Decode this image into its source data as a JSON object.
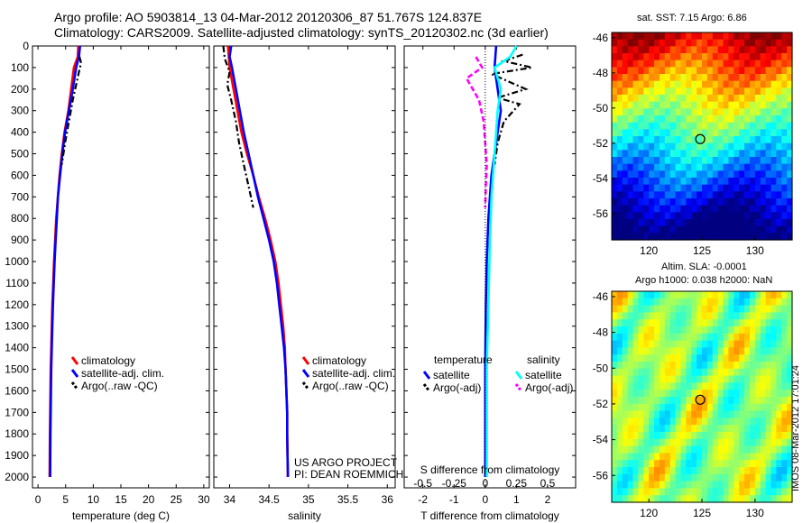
{
  "header": {
    "title_line1": "Argo profile: AO 5903814_13 04-Mar-2012 20120306_87 51.767S 124.837E",
    "title_line2": "Climatology: CARS2009. Satellite-adjusted climatology: synTS_20120302.nc (3d earlier)"
  },
  "side": {
    "sst_title": "sat. SST: 7.15 Argo: 6.86",
    "sla_title1": "Altim. SLA: -0.0001",
    "sla_title2": "Argo h1000: 0.038 h2000: NaN",
    "credit1": "US ARGO PROJECT",
    "credit2": "PI: DEAN ROEMMICH",
    "imos": "IMOS 08-Mar-2012 17:01:24"
  },
  "colors": {
    "climatology": "#ff0000",
    "satellite": "#0000ff",
    "argo": "#000000",
    "salinity_satellite": "#00ffff",
    "salinity_argo": "#ff00ff"
  },
  "chart_data": [
    {
      "type": "line",
      "xlabel": "temperature (deg C)",
      "xlim": [
        -1,
        31
      ],
      "xticks": [
        0,
        5,
        10,
        15,
        20,
        25,
        30
      ],
      "ylabel": "",
      "ylim": [
        0,
        2050
      ],
      "yreversed": true,
      "yticks": [
        0,
        100,
        200,
        300,
        400,
        500,
        600,
        700,
        800,
        900,
        1000,
        1100,
        1200,
        1300,
        1400,
        1500,
        1600,
        1700,
        1800,
        1900,
        2000
      ],
      "legend": [
        "climatology",
        "satellite-adj. clim.",
        "Argo(..raw -QC)"
      ],
      "series": [
        {
          "name": "climatology",
          "style": "solid",
          "color_key": "climatology",
          "x": [
            7.3,
            7.2,
            6.5,
            6.0,
            5.5,
            4.8,
            4.3,
            3.9,
            3.6,
            3.3,
            3.1,
            2.9,
            2.75,
            2.6,
            2.5,
            2.4,
            2.3,
            2.25,
            2.2,
            2.15,
            2.1
          ],
          "y": [
            0,
            50,
            100,
            200,
            300,
            400,
            500,
            600,
            700,
            800,
            900,
            1000,
            1100,
            1200,
            1300,
            1400,
            1500,
            1600,
            1700,
            1800,
            2000
          ]
        },
        {
          "name": "satellite-adj. clim.",
          "style": "solid",
          "color_key": "satellite",
          "x": [
            7.6,
            7.4,
            6.9,
            6.3,
            5.6,
            4.9,
            4.4,
            4.0,
            3.6,
            3.4,
            3.2,
            3.0,
            2.85,
            2.7,
            2.6,
            2.5,
            2.4,
            2.35,
            2.3,
            2.25,
            2.2
          ],
          "y": [
            0,
            50,
            100,
            200,
            300,
            400,
            500,
            600,
            700,
            800,
            900,
            1000,
            1100,
            1200,
            1300,
            1400,
            1500,
            1600,
            1700,
            1800,
            2000
          ]
        },
        {
          "name": "Argo(..raw -QC)",
          "style": "dashdot",
          "color_key": "argo",
          "x": [
            7.5,
            7.8,
            7.4,
            6.9,
            6.3,
            5.6,
            4.9,
            4.3
          ],
          "y": [
            50,
            80,
            120,
            180,
            250,
            350,
            450,
            550
          ]
        }
      ]
    },
    {
      "type": "line",
      "xlabel": "salinity",
      "xlim": [
        33.8,
        36.1
      ],
      "xticks": [
        34,
        34.5,
        35,
        35.5,
        36
      ],
      "ylim": [
        0,
        2050
      ],
      "yreversed": true,
      "legend": [
        "climatology",
        "satellite-adj. clim.",
        "Argo(..raw -QC)"
      ],
      "series": [
        {
          "name": "climatology",
          "style": "solid",
          "color_key": "climatology",
          "x": [
            33.98,
            33.99,
            34.0,
            34.05,
            34.1,
            34.15,
            34.22,
            34.3,
            34.37,
            34.45,
            34.52,
            34.58,
            34.62,
            34.65,
            34.68,
            34.7,
            34.71,
            34.72,
            34.73,
            34.73,
            34.74
          ],
          "y": [
            0,
            50,
            100,
            200,
            300,
            400,
            500,
            600,
            700,
            800,
            900,
            1000,
            1100,
            1200,
            1300,
            1400,
            1500,
            1600,
            1700,
            1800,
            2000
          ]
        },
        {
          "name": "satellite-adj. clim.",
          "style": "solid",
          "color_key": "satellite",
          "x": [
            34.02,
            34.0,
            34.03,
            34.08,
            34.13,
            34.18,
            34.24,
            34.3,
            34.36,
            34.43,
            34.5,
            34.56,
            34.6,
            34.63,
            34.66,
            34.69,
            34.71,
            34.72,
            34.73,
            34.73,
            34.74
          ],
          "y": [
            0,
            50,
            100,
            200,
            300,
            400,
            500,
            600,
            700,
            800,
            900,
            1000,
            1100,
            1200,
            1300,
            1400,
            1500,
            1600,
            1700,
            1800,
            2000
          ]
        },
        {
          "name": "Argo(..raw -QC)",
          "style": "dashdot",
          "color_key": "argo",
          "x": [
            33.92,
            33.94,
            34.0,
            33.97,
            34.02,
            34.08,
            34.12,
            34.18,
            34.24,
            34.3
          ],
          "y": [
            0,
            60,
            120,
            180,
            250,
            350,
            450,
            550,
            650,
            750
          ]
        }
      ]
    },
    {
      "type": "line",
      "xlabel": "T difference from climatology",
      "xlabel_top": "S difference from climatology",
      "xlim": [
        -2.6,
        2.9
      ],
      "xticks": [
        -2,
        -1,
        0,
        1,
        2
      ],
      "xticks_top": [
        "-0.5",
        "-0.25",
        "0",
        "0.25",
        "0.5"
      ],
      "ylim": [
        0,
        2050
      ],
      "yreversed": true,
      "legend_headers": [
        "temperature",
        "salinity"
      ],
      "legend": [
        "satellite",
        "Argo(-adj)",
        "satellite",
        "Argo(-adj)"
      ],
      "series": [
        {
          "name": "satellite",
          "group": "temperature",
          "style": "solid",
          "color_key": "satellite",
          "x": [
            0.35,
            0.3,
            0.4,
            0.5,
            0.4,
            0.3,
            0.2,
            0.1,
            0.05,
            0.02,
            0.0,
            0.0
          ],
          "y": [
            0,
            100,
            200,
            300,
            400,
            500,
            600,
            800,
            1000,
            1200,
            1500,
            2000
          ]
        },
        {
          "name": "Argo(-adj)",
          "group": "temperature",
          "style": "dashdot",
          "color_key": "argo",
          "x": [
            1.2,
            0.6,
            1.5,
            0.2,
            1.3,
            0.4,
            1.1,
            0.6,
            0.4,
            0.3
          ],
          "y": [
            40,
            70,
            100,
            130,
            200,
            240,
            270,
            350,
            450,
            550
          ]
        },
        {
          "name": "satellite",
          "group": "salinity",
          "style": "solid",
          "color_key": "salinity_satellite",
          "x": [
            1.0,
            0.8,
            0.3,
            0.5,
            0.4,
            0.3,
            0.2,
            0.15,
            0.1,
            0.05,
            0.05
          ],
          "y": [
            0,
            50,
            100,
            200,
            300,
            500,
            700,
            900,
            1200,
            1500,
            2000
          ]
        },
        {
          "name": "Argo(-adj)",
          "group": "salinity",
          "style": "dashed",
          "color_key": "salinity_argo",
          "x": [
            -0.3,
            -0.1,
            -0.6,
            -0.2,
            -0.05,
            0.0,
            0.05,
            0.02,
            0.0
          ],
          "y": [
            50,
            100,
            150,
            250,
            350,
            450,
            550,
            650,
            750
          ]
        }
      ]
    },
    {
      "type": "heatmap",
      "title": "sat. SST: 7.15 Argo: 6.86",
      "xlim": [
        116.5,
        133.5
      ],
      "ylim": [
        -57.5,
        -45.7
      ],
      "xticks": [
        120,
        125,
        130
      ],
      "yticks": [
        -46,
        -48,
        -50,
        -52,
        -54,
        -56
      ],
      "marker": {
        "lon": 124.837,
        "lat": -51.767
      }
    },
    {
      "type": "heatmap",
      "title": "Altim. SLA: -0.0001",
      "xlim": [
        116.5,
        133.5
      ],
      "ylim": [
        -57.5,
        -45.7
      ],
      "xticks": [
        120,
        125,
        130
      ],
      "yticks": [
        -46,
        -48,
        -50,
        -52,
        -54,
        -56
      ],
      "marker": {
        "lon": 124.837,
        "lat": -51.767
      }
    }
  ]
}
